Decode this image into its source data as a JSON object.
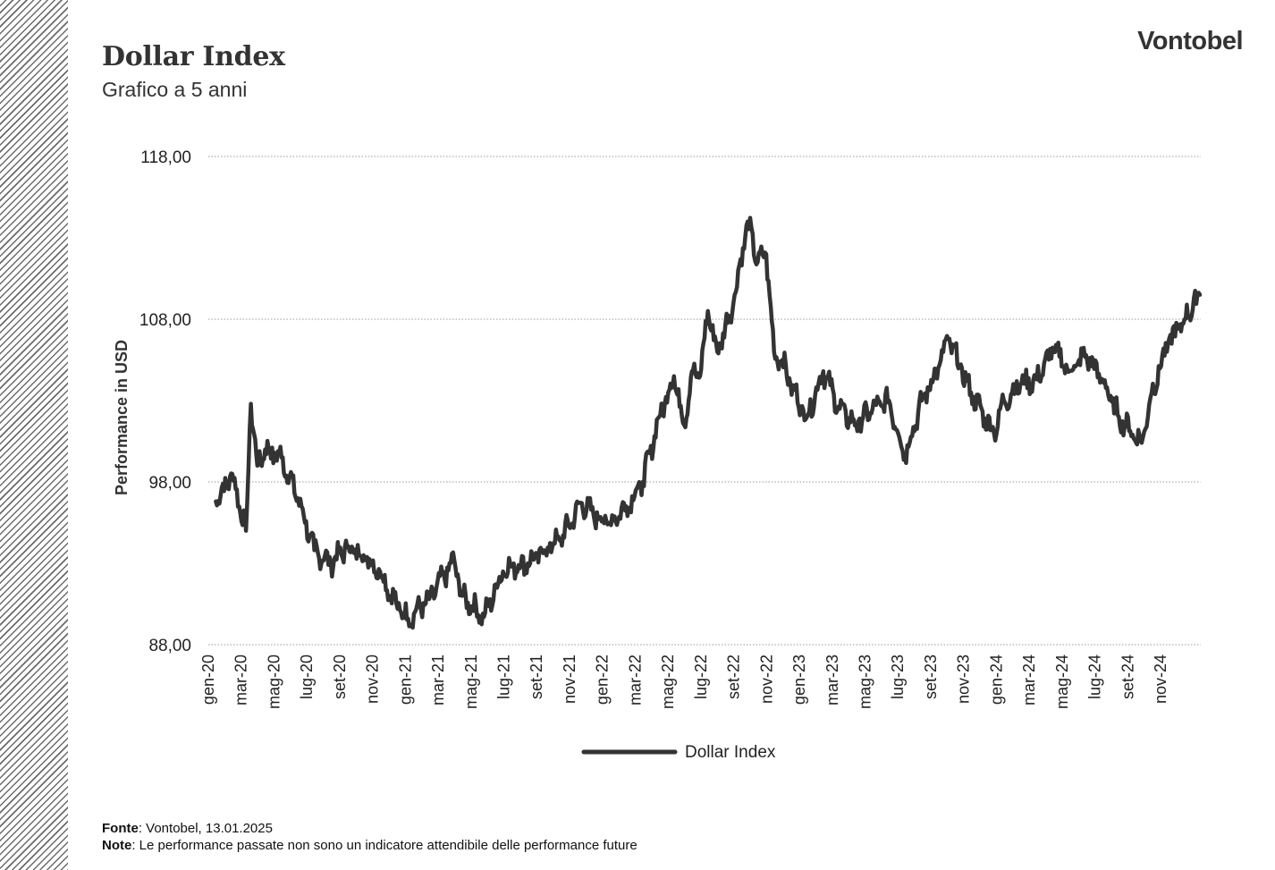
{
  "header": {
    "title": "Dollar Index",
    "subtitle": "Grafico a 5 anni",
    "brand": "Vontobel"
  },
  "footer": {
    "source_label": "Fonte",
    "source_text": ": Vontobel, 13.01.2025",
    "note_label": "Note",
    "note_text": ": Le performance passate non sono un indicatore attendibile delle performance future"
  },
  "chart_data": {
    "type": "line",
    "ylabel": "Performance in USD",
    "ylim": [
      88,
      118
    ],
    "yticks": [
      88,
      98,
      108,
      118
    ],
    "ytick_labels": [
      "88,00",
      "98,00",
      "108,00",
      "118,00"
    ],
    "grid": true,
    "legend_position": "bottom-center",
    "xtick_labels": [
      "gen-20",
      "mar-20",
      "mag-20",
      "lug-20",
      "set-20",
      "nov-20",
      "gen-21",
      "mar-21",
      "mag-21",
      "lug-21",
      "set-21",
      "nov-21",
      "gen-22",
      "mar-22",
      "mag-22",
      "lug-22",
      "set-22",
      "nov-22",
      "gen-23",
      "mar-23",
      "mag-23",
      "lug-23",
      "set-23",
      "nov-23",
      "gen-24",
      "mar-24",
      "mag-24",
      "lug-24",
      "set-24",
      "nov-24"
    ],
    "line_color": "#333333",
    "series": [
      {
        "name": "Dollar Index",
        "x": [
          "2020-01",
          "2020-02",
          "2020-03-10",
          "2020-03-19",
          "2020-03-31",
          "2020-04",
          "2020-05",
          "2020-06",
          "2020-07",
          "2020-08",
          "2020-09",
          "2020-10",
          "2020-11",
          "2020-12",
          "2021-01-06",
          "2021-02",
          "2021-03-31",
          "2021-04",
          "2021-05-25",
          "2021-06-30",
          "2021-07",
          "2021-08",
          "2021-09",
          "2021-10",
          "2021-11-24",
          "2021-12",
          "2022-01",
          "2022-02",
          "2022-03",
          "2022-04",
          "2022-05-12",
          "2022-05-31",
          "2022-06-15",
          "2022-06-30",
          "2022-07-14",
          "2022-08-01",
          "2022-08-31",
          "2022-09-27",
          "2022-10-15",
          "2022-10-31",
          "2022-11-15",
          "2022-11-30",
          "2022-12",
          "2023-01",
          "2023-02",
          "2023-03",
          "2023-04",
          "2023-05",
          "2023-06",
          "2023-07-14",
          "2023-08",
          "2023-09",
          "2023-10-03",
          "2023-11",
          "2023-12-27",
          "2024-01",
          "2024-02",
          "2024-03",
          "2024-04-16",
          "2024-05",
          "2024-06",
          "2024-07",
          "2024-08",
          "2024-09-27",
          "2024-10",
          "2024-11",
          "2024-12",
          "2025-01-13"
        ],
        "values": [
          96.8,
          98.5,
          95.0,
          102.8,
          99.0,
          100.0,
          99.5,
          97.0,
          93.8,
          93.0,
          94.0,
          93.5,
          92.5,
          90.5,
          89.6,
          90.8,
          93.2,
          91.0,
          89.7,
          92.5,
          92.8,
          93.0,
          93.8,
          94.5,
          96.7,
          96.0,
          95.5,
          96.5,
          98.0,
          102.0,
          104.5,
          101.5,
          104.8,
          104.5,
          108.5,
          106.0,
          109.0,
          114.0,
          111.5,
          112.0,
          106.0,
          105.5,
          104.0,
          102.0,
          104.8,
          102.5,
          101.5,
          102.5,
          103.0,
          99.6,
          103.0,
          105.0,
          106.8,
          103.5,
          101.0,
          103.0,
          104.0,
          104.3,
          106.2,
          104.8,
          105.8,
          104.3,
          102.0,
          100.4,
          103.5,
          106.5,
          108.0,
          109.5
        ]
      }
    ]
  }
}
